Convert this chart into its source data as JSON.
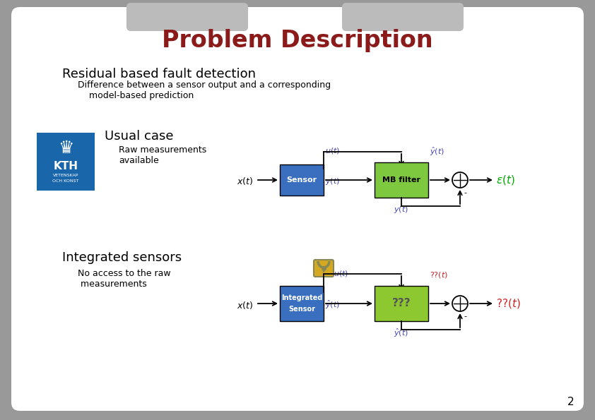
{
  "title": "Problem Description",
  "title_color": "#8B1A1A",
  "title_fontsize": 24,
  "outer_bg": "#999999",
  "heading1": "Residual based fault detection",
  "subtext1": "Difference between a sensor output and a corresponding\n    model-based prediction",
  "heading2": "Usual case",
  "subtext2": "Raw measurements\navailable",
  "heading3": "Integrated sensors",
  "subtext3": "No access to the raw\n measurements",
  "sensor_color": "#3A6FBF",
  "mbfilter_color": "#7EC840",
  "qqq_color": "#8DC830",
  "int_sensor_color": "#3A6FBF",
  "page_num": "2",
  "kth_blue": "#1A66AA",
  "epsilon_color": "#00AA00",
  "qq_color": "#CC2222",
  "label_blue": "#4444BB"
}
